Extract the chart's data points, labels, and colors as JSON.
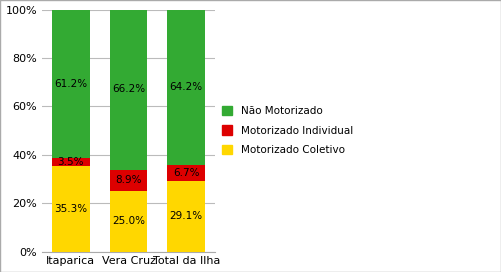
{
  "categories": [
    "Itaparica",
    "Vera Cruz",
    "Total da Ilha"
  ],
  "motorizado_coletivo": [
    35.3,
    25.0,
    29.1
  ],
  "motorizado_individual": [
    3.5,
    8.9,
    6.7
  ],
  "nao_motorizado": [
    61.2,
    66.2,
    64.2
  ],
  "colors": {
    "motorizado_coletivo": "#FFD700",
    "motorizado_individual": "#DD0000",
    "nao_motorizado": "#33AA33"
  },
  "labels": {
    "motorizado_coletivo": "Motorizado Coletivo",
    "motorizado_individual": "Motorizado Individual",
    "nao_motorizado": "Não Motorizado"
  },
  "yticks": [
    0,
    20,
    40,
    60,
    80,
    100
  ],
  "bar_width": 0.65,
  "background_color": "#FFFFFF",
  "grid_color": "#BBBBBB",
  "label_fontsize": 7.5,
  "legend_fontsize": 7.5,
  "tick_fontsize": 8,
  "fig_border_color": "#AAAAAA"
}
